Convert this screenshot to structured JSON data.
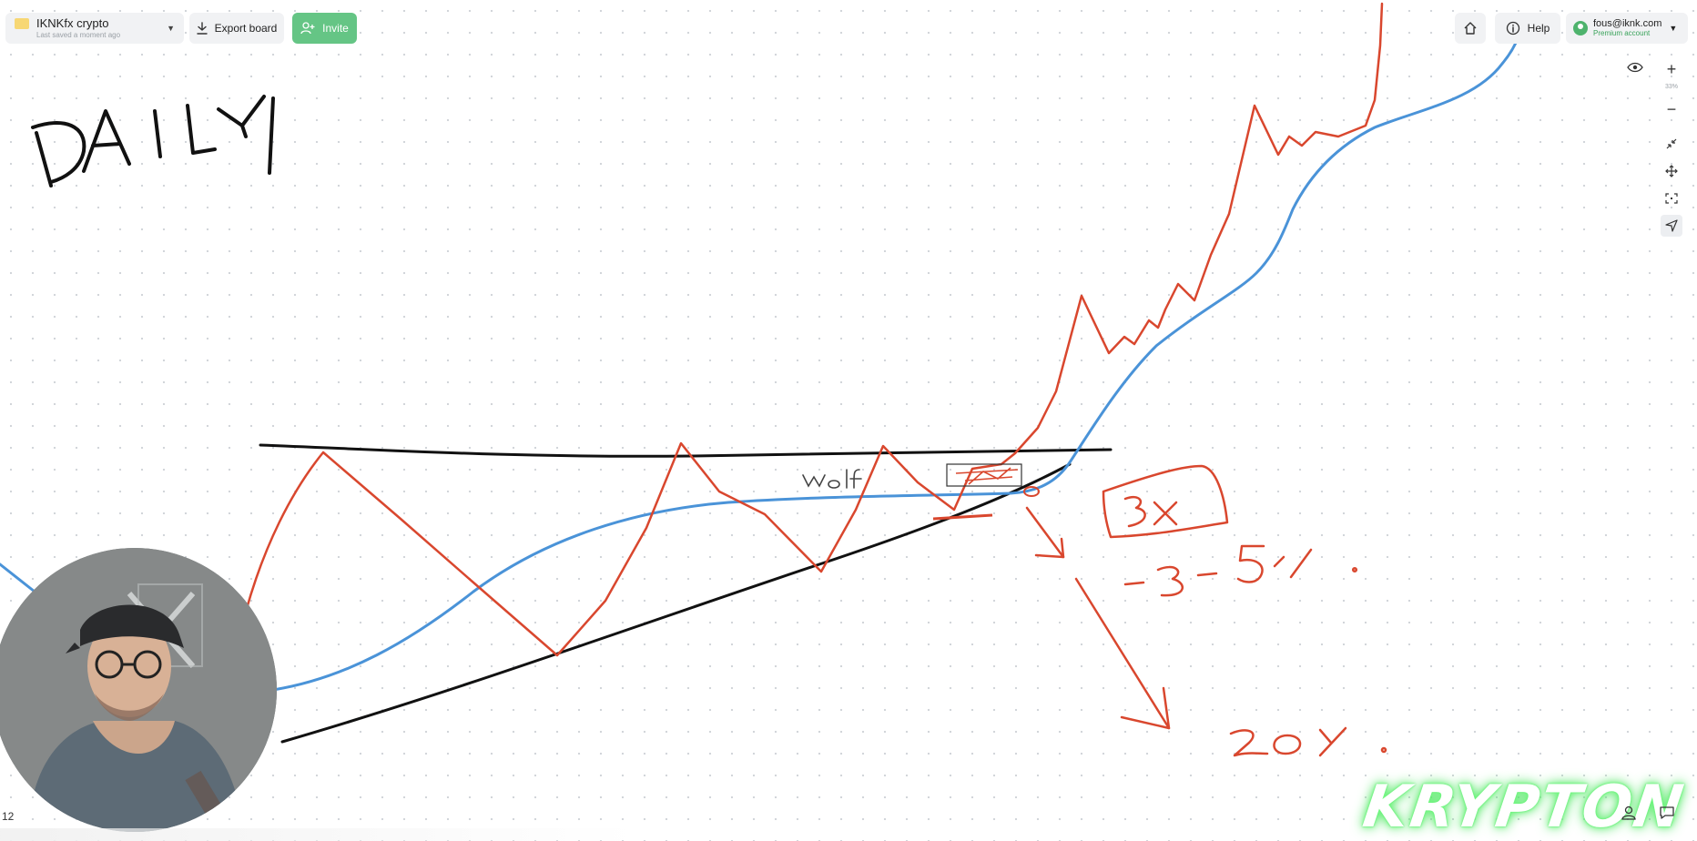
{
  "topbar": {
    "board_name": "IKNKfx crypto",
    "board_saved": "Last saved a moment ago",
    "export_label": "Export board",
    "invite_label": "Invite",
    "help_label": "Help",
    "account_email": "fous@iknk.com",
    "account_plan": "Premium account"
  },
  "right_toolbar": {
    "items": [
      "eye-icon",
      "plus-icon",
      "minus-icon",
      "collapse-icon",
      "move-icon",
      "fit-screen-icon",
      "pointer-icon"
    ],
    "zoom_level": "33%"
  },
  "canvas": {
    "handwriting": {
      "title": "DAILY",
      "note_wolf": "wolf",
      "box_label": "3x",
      "percent_a": "-3-5%",
      "percent_b": "20%"
    }
  },
  "footer": {
    "page_indicator": "12",
    "watermark": "KRYPTON"
  },
  "colors": {
    "accent_green": "#65c585",
    "ink_red": "#d9472e",
    "ink_blue": "#4a93d8",
    "ink_black": "#111111"
  }
}
